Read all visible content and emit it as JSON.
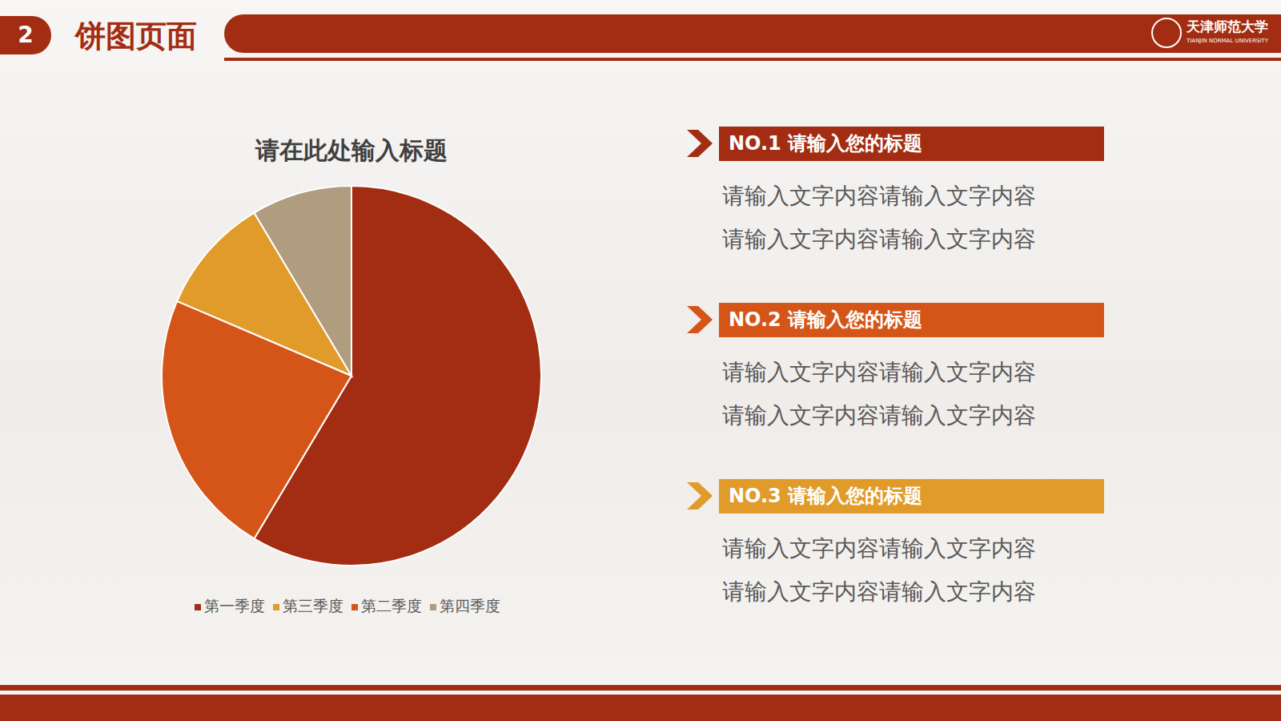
{
  "chart_data": {
    "type": "pie",
    "title": "请在此处输入标题",
    "categories": [
      "第一季度",
      "第二季度",
      "第三季度",
      "第四季度"
    ],
    "values": [
      8.2,
      3.2,
      1.4,
      1.2
    ],
    "colors": [
      "#a32d12",
      "#d55518",
      "#e09b2a",
      "#b09c7e"
    ],
    "legend": "bottom"
  },
  "slide": {
    "page_number": "2",
    "heading": "饼图页面",
    "logo": {
      "name": "天津师范大学",
      "english": "TIANJIN NORMAL UNIVERSITY"
    },
    "items": [
      {
        "title": "NO.1 请输入您的标题",
        "lines": [
          "请输入文字内容请输入文字内容",
          "请输入文字内容请输入文字内容"
        ]
      },
      {
        "title": "NO.2 请输入您的标题",
        "lines": [
          "请输入文字内容请输入文字内容",
          "请输入文字内容请输入文字内容"
        ]
      },
      {
        "title": "NO.3 请输入您的标题",
        "lines": [
          "请输入文字内容请输入文字内容",
          "请输入文字内容请输入文字内容"
        ]
      }
    ]
  }
}
